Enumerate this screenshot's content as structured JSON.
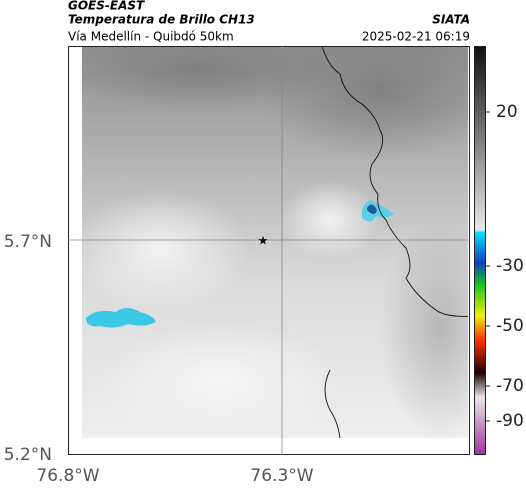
{
  "header": {
    "satellite": "GOES-EAST",
    "product": "Temperatura de Brillo CH13",
    "route": "Vía Medellín - Quibdó 50km",
    "source": "SIATA",
    "timestamp": "2025-02-21 06:19"
  },
  "axes": {
    "y_labels": [
      "5.7°N",
      "5.2°N"
    ],
    "x_labels": [
      "76.8°W",
      "76.3°W"
    ]
  },
  "colorbar": {
    "ticks": [
      20,
      -30,
      -50,
      -70,
      -90
    ]
  }
}
